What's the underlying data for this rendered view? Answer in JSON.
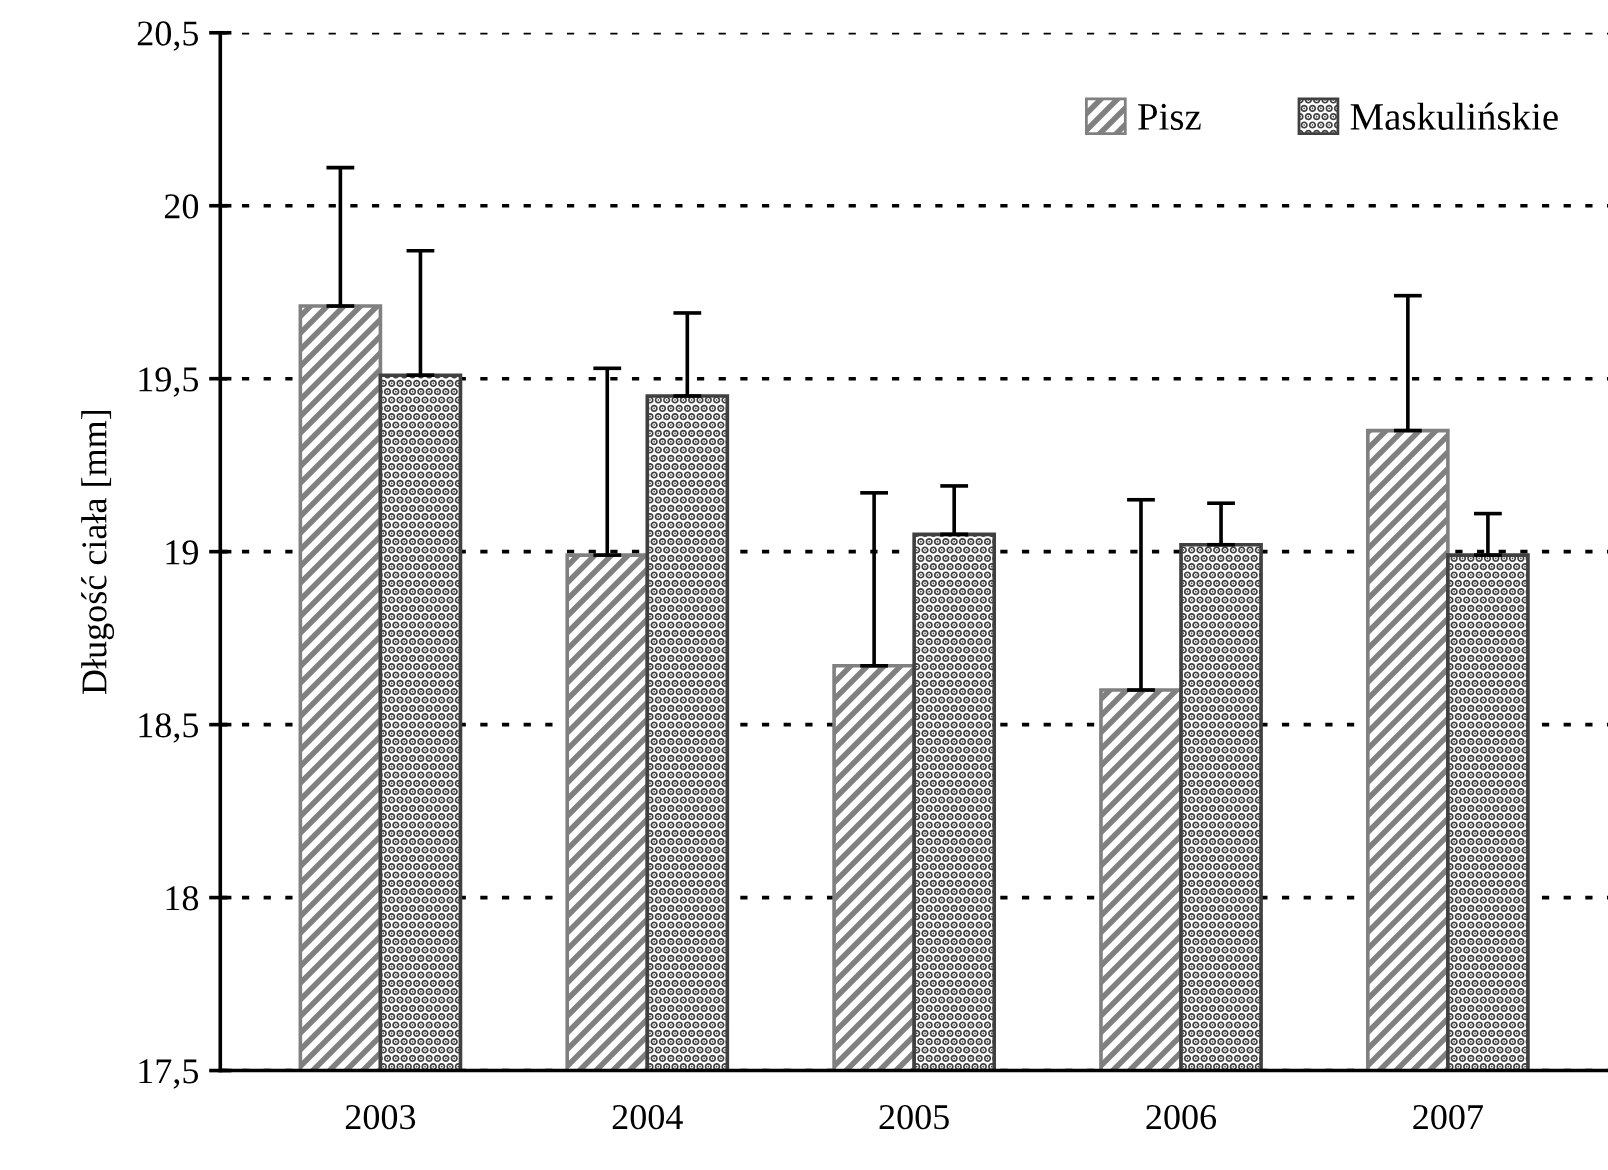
{
  "chart_data": {
    "type": "bar",
    "ylabel": "Długość ciała [mm]",
    "categories": [
      "2003",
      "2004",
      "2005",
      "2006",
      "2007"
    ],
    "series": [
      {
        "name": "Pisz",
        "color": "#808080",
        "values": [
          19.71,
          18.99,
          18.67,
          18.6,
          19.35
        ],
        "errors": [
          [
            19.71,
            20.11
          ],
          [
            18.99,
            19.53
          ],
          [
            18.67,
            19.17
          ],
          [
            18.6,
            19.15
          ],
          [
            19.35,
            19.74
          ]
        ]
      },
      {
        "name": "Maskulińskie",
        "color": "#404040",
        "values": [
          19.51,
          19.45,
          19.05,
          19.02,
          18.99
        ],
        "errors": [
          [
            19.51,
            19.87
          ],
          [
            19.45,
            19.69
          ],
          [
            19.05,
            19.19
          ],
          [
            19.02,
            19.14
          ],
          [
            18.99,
            19.11
          ]
        ]
      }
    ],
    "ylim": [
      17.5,
      20.5
    ],
    "yticks": [
      {
        "value": 17.5,
        "label": "17,5"
      },
      18,
      {
        "value": 18.5,
        "label": "18,5"
      },
      19,
      {
        "value": 19.5,
        "label": "19,5"
      },
      20,
      {
        "value": 20.5,
        "label": "20,5"
      }
    ],
    "grid": "y",
    "legend": "top right"
  }
}
